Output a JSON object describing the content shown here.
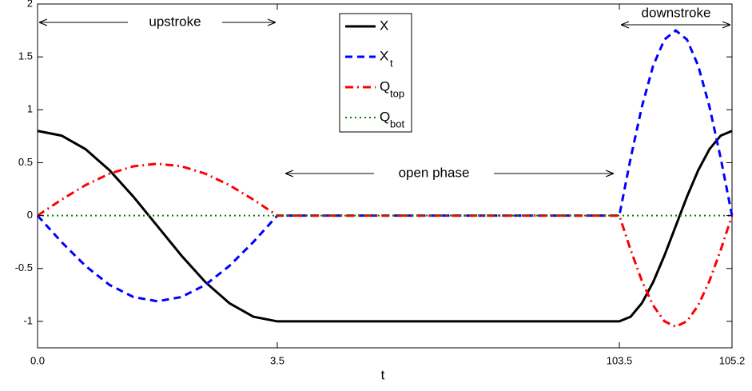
{
  "chart_data": {
    "type": "line",
    "xlabel": "t",
    "annotations": [
      "upstroke",
      "open phase",
      "downstroke"
    ],
    "x": [
      0,
      0.35,
      0.7,
      1.05,
      1.4,
      1.75,
      2.1,
      2.45,
      2.8,
      3.15,
      3.5,
      103.5,
      103.67,
      103.84,
      104.01,
      104.18,
      104.35,
      104.52,
      104.69,
      104.86,
      105.03,
      105.2
    ],
    "series": [
      {
        "name": "X",
        "color": "#000000",
        "dash": "solid",
        "values": [
          0.8,
          0.756,
          0.628,
          0.429,
          0.178,
          -0.1,
          -0.378,
          -0.629,
          -0.828,
          -0.956,
          -1.0,
          -1.0,
          -0.956,
          -0.828,
          -0.629,
          -0.378,
          -0.1,
          0.178,
          0.429,
          0.628,
          0.756,
          0.8
        ]
      },
      {
        "name": "X",
        "subscript": "t",
        "color": "#0000ff",
        "dash": "dashed",
        "values": [
          0,
          -0.25,
          -0.476,
          -0.655,
          -0.77,
          -0.81,
          -0.77,
          -0.655,
          -0.476,
          -0.25,
          0,
          0,
          0.541,
          1.029,
          1.416,
          1.664,
          1.75,
          1.664,
          1.416,
          1.029,
          0.541,
          0
        ]
      },
      {
        "name": "Q",
        "subscript": "top",
        "color": "#ff0000",
        "dash": "dashdot",
        "values": [
          0,
          0.151,
          0.288,
          0.396,
          0.466,
          0.49,
          0.466,
          0.396,
          0.288,
          0.151,
          0,
          0,
          -0.324,
          -0.617,
          -0.849,
          -0.999,
          -1.05,
          -0.999,
          -0.849,
          -0.617,
          -0.324,
          0
        ]
      },
      {
        "name": "Q",
        "subscript": "bot",
        "color": "#008000",
        "dash": "dotted",
        "values": [
          0,
          0,
          0,
          0,
          0,
          0,
          0,
          0,
          0,
          0,
          0,
          0,
          0,
          0,
          0,
          0,
          0,
          0,
          0,
          0,
          0,
          0
        ]
      }
    ],
    "xlim": [
      0,
      105.2
    ],
    "xticks": [
      {
        "value": 0,
        "label": "0.0"
      },
      3.5,
      103.5,
      105.2
    ],
    "ylim": [
      -1.25,
      2
    ],
    "yticks": [
      2,
      1.5,
      1,
      0.5,
      0,
      -0.5,
      -1
    ],
    "legend": "top-center"
  }
}
